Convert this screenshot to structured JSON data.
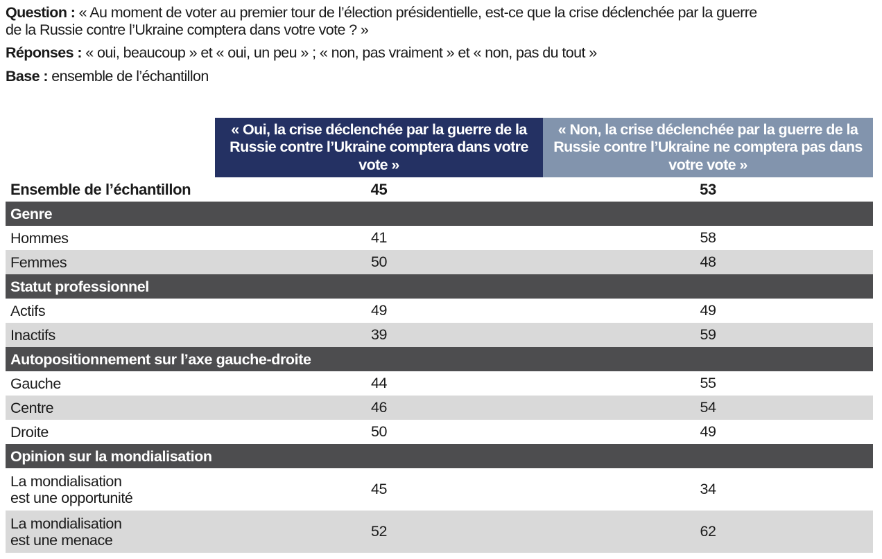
{
  "intro": {
    "question_label": "Question :",
    "question_text_line1": " « Au moment de voter au premier tour de l’élection présidentielle, est-ce que la crise déclenchée par la guerre",
    "question_text_line2": "de la Russie contre l’Ukraine comptera dans votre vote ? »",
    "responses_label": "Réponses :",
    "responses_text": " « oui, beaucoup » et « oui, un peu » ; « non, pas vraiment » et « non, pas du tout »",
    "base_label": "Base :",
    "base_text": " ensemble de l’échantillon"
  },
  "table": {
    "col_oui": "« Oui, la crise déclenchée par la guerre de la Russie contre l’Ukraine comptera dans votre vote »",
    "col_non": "« Non, la crise déclenchée par la guerre de la Russie contre l’Ukraine ne comptera pas dans votre vote »",
    "colors": {
      "oui_header": "#243163",
      "non_header": "#8294ad",
      "section": "#4d4d4f",
      "shade": "#d9d9d9"
    },
    "total": {
      "label": "Ensemble de l’échantillon",
      "oui": "45",
      "non": "53"
    },
    "sections": [
      {
        "title": "Genre",
        "rows": [
          {
            "label": "Hommes",
            "oui": "41",
            "non": "58"
          },
          {
            "label": "Femmes",
            "oui": "50",
            "non": "48"
          }
        ]
      },
      {
        "title": "Statut professionnel",
        "rows": [
          {
            "label": "Actifs",
            "oui": "49",
            "non": "49"
          },
          {
            "label": "Inactifs",
            "oui": "39",
            "non": "59"
          }
        ]
      },
      {
        "title": "Autopositionnement sur l’axe gauche-droite",
        "rows": [
          {
            "label": "Gauche",
            "oui": "44",
            "non": "55"
          },
          {
            "label": "Centre",
            "oui": "46",
            "non": "54"
          },
          {
            "label": "Droite",
            "oui": "50",
            "non": "49"
          }
        ]
      },
      {
        "title": "Opinion sur la mondialisation",
        "rows": [
          {
            "label_line1": "La mondialisation",
            "label_line2": "est une opportunité",
            "oui": "45",
            "non": "34"
          },
          {
            "label_line1": "La mondialisation",
            "label_line2": "est une menace",
            "oui": "52",
            "non": "62"
          }
        ]
      }
    ]
  }
}
